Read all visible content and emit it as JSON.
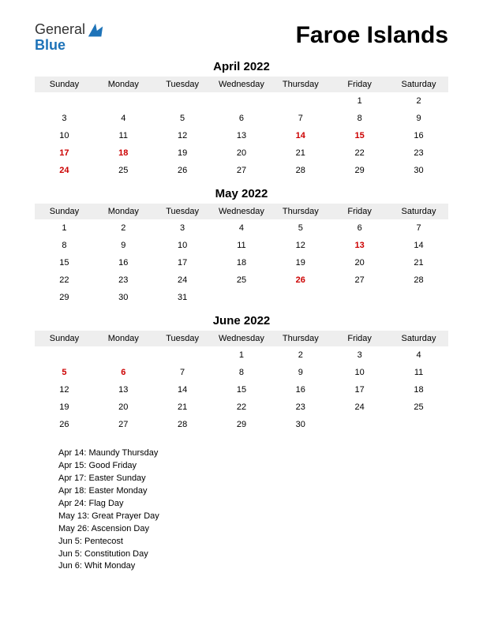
{
  "logo": {
    "general": "General",
    "blue": "Blue"
  },
  "title": "Faroe Islands",
  "day_headers": [
    "Sunday",
    "Monday",
    "Tuesday",
    "Wednesday",
    "Thursday",
    "Friday",
    "Saturday"
  ],
  "colors": {
    "background": "#ffffff",
    "text": "#000000",
    "header_bg": "#eeeeee",
    "holiday": "#cc0000",
    "logo_blue": "#1e73b8"
  },
  "months": [
    {
      "title": "April 2022",
      "weeks": [
        [
          {
            "d": ""
          },
          {
            "d": ""
          },
          {
            "d": ""
          },
          {
            "d": ""
          },
          {
            "d": ""
          },
          {
            "d": "1"
          },
          {
            "d": "2"
          }
        ],
        [
          {
            "d": "3"
          },
          {
            "d": "4"
          },
          {
            "d": "5"
          },
          {
            "d": "6"
          },
          {
            "d": "7"
          },
          {
            "d": "8"
          },
          {
            "d": "9"
          }
        ],
        [
          {
            "d": "10"
          },
          {
            "d": "11"
          },
          {
            "d": "12"
          },
          {
            "d": "13"
          },
          {
            "d": "14",
            "h": true
          },
          {
            "d": "15",
            "h": true
          },
          {
            "d": "16"
          }
        ],
        [
          {
            "d": "17",
            "h": true
          },
          {
            "d": "18",
            "h": true
          },
          {
            "d": "19"
          },
          {
            "d": "20"
          },
          {
            "d": "21"
          },
          {
            "d": "22"
          },
          {
            "d": "23"
          }
        ],
        [
          {
            "d": "24",
            "h": true
          },
          {
            "d": "25"
          },
          {
            "d": "26"
          },
          {
            "d": "27"
          },
          {
            "d": "28"
          },
          {
            "d": "29"
          },
          {
            "d": "30"
          }
        ]
      ]
    },
    {
      "title": "May 2022",
      "weeks": [
        [
          {
            "d": "1"
          },
          {
            "d": "2"
          },
          {
            "d": "3"
          },
          {
            "d": "4"
          },
          {
            "d": "5"
          },
          {
            "d": "6"
          },
          {
            "d": "7"
          }
        ],
        [
          {
            "d": "8"
          },
          {
            "d": "9"
          },
          {
            "d": "10"
          },
          {
            "d": "11"
          },
          {
            "d": "12"
          },
          {
            "d": "13",
            "h": true
          },
          {
            "d": "14"
          }
        ],
        [
          {
            "d": "15"
          },
          {
            "d": "16"
          },
          {
            "d": "17"
          },
          {
            "d": "18"
          },
          {
            "d": "19"
          },
          {
            "d": "20"
          },
          {
            "d": "21"
          }
        ],
        [
          {
            "d": "22"
          },
          {
            "d": "23"
          },
          {
            "d": "24"
          },
          {
            "d": "25"
          },
          {
            "d": "26",
            "h": true
          },
          {
            "d": "27"
          },
          {
            "d": "28"
          }
        ],
        [
          {
            "d": "29"
          },
          {
            "d": "30"
          },
          {
            "d": "31"
          },
          {
            "d": ""
          },
          {
            "d": ""
          },
          {
            "d": ""
          },
          {
            "d": ""
          }
        ]
      ]
    },
    {
      "title": "June 2022",
      "weeks": [
        [
          {
            "d": ""
          },
          {
            "d": ""
          },
          {
            "d": ""
          },
          {
            "d": "1"
          },
          {
            "d": "2"
          },
          {
            "d": "3"
          },
          {
            "d": "4"
          }
        ],
        [
          {
            "d": "5",
            "h": true
          },
          {
            "d": "6",
            "h": true
          },
          {
            "d": "7"
          },
          {
            "d": "8"
          },
          {
            "d": "9"
          },
          {
            "d": "10"
          },
          {
            "d": "11"
          }
        ],
        [
          {
            "d": "12"
          },
          {
            "d": "13"
          },
          {
            "d": "14"
          },
          {
            "d": "15"
          },
          {
            "d": "16"
          },
          {
            "d": "17"
          },
          {
            "d": "18"
          }
        ],
        [
          {
            "d": "19"
          },
          {
            "d": "20"
          },
          {
            "d": "21"
          },
          {
            "d": "22"
          },
          {
            "d": "23"
          },
          {
            "d": "24"
          },
          {
            "d": "25"
          }
        ],
        [
          {
            "d": "26"
          },
          {
            "d": "27"
          },
          {
            "d": "28"
          },
          {
            "d": "29"
          },
          {
            "d": "30"
          },
          {
            "d": ""
          },
          {
            "d": ""
          }
        ]
      ]
    }
  ],
  "holidays": [
    "Apr 14: Maundy Thursday",
    "Apr 15: Good Friday",
    "Apr 17: Easter Sunday",
    "Apr 18: Easter Monday",
    "Apr 24: Flag Day",
    "May 13: Great Prayer Day",
    "May 26: Ascension Day",
    "Jun 5: Pentecost",
    " Jun 5: Constitution Day",
    "Jun 6: Whit Monday"
  ]
}
